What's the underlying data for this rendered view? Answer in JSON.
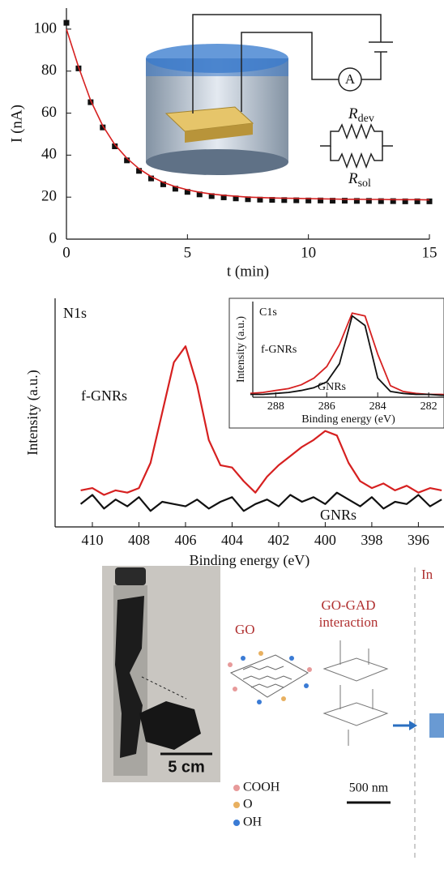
{
  "chart_data": [
    {
      "type": "line",
      "xlabel": "t (min)",
      "ylabel": "I (nA)",
      "xlim": [
        0,
        15
      ],
      "ylim": [
        0,
        110
      ],
      "xticks": [
        0,
        5,
        10,
        15
      ],
      "yticks": [
        0,
        20,
        40,
        60,
        80,
        100
      ],
      "x": [
        0,
        0.5,
        1,
        1.5,
        2,
        2.5,
        3,
        3.5,
        4,
        4.5,
        5,
        5.5,
        6,
        6.5,
        7,
        7.5,
        8,
        8.5,
        9,
        9.5,
        10,
        10.5,
        11,
        11.5,
        12,
        12.5,
        13,
        13.5,
        14,
        14.5,
        15
      ],
      "series": [
        {
          "marker": "square",
          "color": "#111111",
          "values": [
            103,
            81.3,
            65.2,
            53.2,
            44.2,
            37.5,
            32.5,
            28.9,
            26.1,
            24.0,
            22.5,
            21.3,
            20.5,
            19.9,
            19.4,
            19.0,
            18.8,
            18.7,
            18.6,
            18.5,
            18.4,
            18.4,
            18.3,
            18.3,
            18.2,
            18.2,
            18.1,
            18.1,
            18.0,
            18.0,
            18.0
          ]
        },
        {
          "color": "#d62020",
          "values": [
            100,
            82,
            66,
            54,
            45,
            38.5,
            33.5,
            29.8,
            27,
            25,
            23.5,
            22.3,
            21.5,
            20.9,
            20.4,
            20.0,
            19.8,
            19.6,
            19.5,
            19.4,
            19.3,
            19.2,
            19.1,
            19.0,
            19.0,
            18.9,
            18.9,
            18.8,
            18.8,
            18.8,
            18.7
          ]
        }
      ],
      "annotations": {
        "ammeter": "A",
        "r_dev": {
          "symbol": "R",
          "subscript": "dev"
        },
        "r_sol": {
          "symbol": "R",
          "subscript": "sol"
        }
      }
    },
    {
      "type": "line",
      "panel_label": "N1s",
      "xlabel": "Binding energy (eV)",
      "ylabel": "Intensity (a.u.)",
      "xlim": [
        411.6,
        394.9
      ],
      "ylim": [
        0,
        1
      ],
      "xticks": [
        410,
        408,
        406,
        404,
        402,
        400,
        398,
        396
      ],
      "x": [
        410.5,
        410,
        409.5,
        409,
        408.5,
        408,
        407.5,
        407,
        406.5,
        406,
        405.5,
        405,
        404.5,
        404,
        403.5,
        403,
        402.5,
        402,
        401.5,
        401,
        400.5,
        400,
        399.5,
        399,
        398.5,
        398,
        397.5,
        397,
        396.5,
        396,
        395.5,
        395
      ],
      "series": [
        {
          "name": "f-GNRs",
          "color": "#d62020",
          "values": [
            0.16,
            0.17,
            0.14,
            0.16,
            0.15,
            0.17,
            0.28,
            0.5,
            0.72,
            0.79,
            0.62,
            0.38,
            0.27,
            0.26,
            0.2,
            0.15,
            0.22,
            0.27,
            0.31,
            0.35,
            0.38,
            0.42,
            0.4,
            0.28,
            0.2,
            0.17,
            0.19,
            0.16,
            0.18,
            0.15,
            0.17,
            0.16
          ]
        },
        {
          "name": "GNRs",
          "color": "#111111",
          "values": [
            0.1,
            0.14,
            0.08,
            0.12,
            0.09,
            0.13,
            0.07,
            0.11,
            0.1,
            0.09,
            0.12,
            0.08,
            0.11,
            0.13,
            0.07,
            0.1,
            0.12,
            0.09,
            0.14,
            0.11,
            0.13,
            0.1,
            0.15,
            0.12,
            0.09,
            0.13,
            0.08,
            0.11,
            0.1,
            0.14,
            0.09,
            0.12
          ]
        }
      ]
    },
    {
      "type": "line",
      "panel_label": "C1s",
      "xlabel": "Binding energy (eV)",
      "ylabel": "Intensity (a.u.)",
      "xlim": [
        288.9,
        281.4
      ],
      "ylim": [
        0,
        1
      ],
      "xticks": [
        288,
        286,
        284,
        282
      ],
      "x": [
        289,
        288.5,
        288,
        287.5,
        287,
        286.5,
        286,
        285.5,
        285,
        284.5,
        284,
        283.5,
        283,
        282.5,
        282,
        281.5,
        281
      ],
      "series": [
        {
          "name": "f-GNRs",
          "color": "#d62020",
          "values": [
            0.04,
            0.05,
            0.07,
            0.09,
            0.13,
            0.2,
            0.32,
            0.55,
            0.88,
            0.85,
            0.45,
            0.12,
            0.06,
            0.04,
            0.03,
            0.03,
            0.02
          ]
        },
        {
          "name": "GNRs",
          "color": "#111111",
          "values": [
            0.03,
            0.03,
            0.04,
            0.05,
            0.07,
            0.1,
            0.16,
            0.35,
            0.85,
            0.75,
            0.2,
            0.06,
            0.04,
            0.03,
            0.03,
            0.02,
            0.02
          ]
        }
      ]
    }
  ],
  "diagram": {
    "scale_photo": "5 cm",
    "go_label": "GO",
    "groups": [
      "COOH",
      "O",
      "OH"
    ],
    "interaction_title": [
      "GO-GAD",
      "interaction"
    ],
    "scale_tem": "500 nm",
    "next_panel": "In"
  }
}
